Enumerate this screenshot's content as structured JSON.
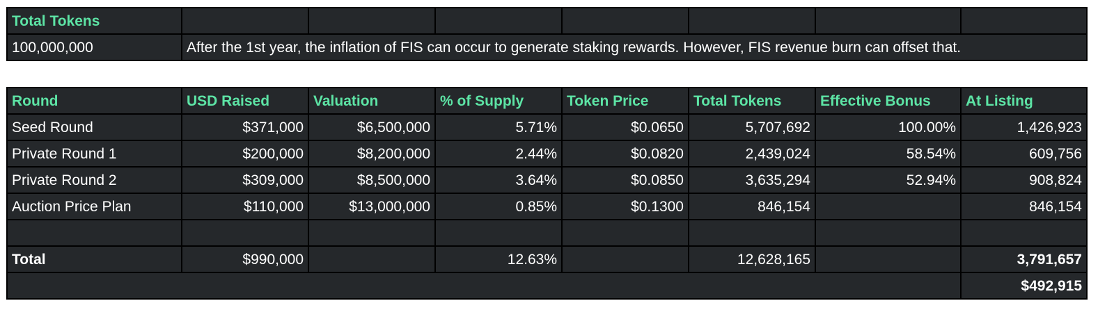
{
  "summary": {
    "header": "Total Tokens",
    "total_tokens": "100,000,000",
    "note": "After the 1st year, the inflation of FIS can occur to generate staking rewards. However, FIS revenue burn can offset that."
  },
  "table": {
    "columns": [
      "Round",
      "USD Raised",
      "Valuation",
      "% of Supply",
      "Token Price",
      "Total Tokens",
      "Effective Bonus",
      "At Listing"
    ],
    "rows": [
      [
        "Seed Round",
        "$371,000",
        "$6,500,000",
        "5.71%",
        "$0.0650",
        "5,707,692",
        "100.00%",
        "1,426,923"
      ],
      [
        "Private Round 1",
        "$200,000",
        "$8,200,000",
        "2.44%",
        "$0.0820",
        "2,439,024",
        "58.54%",
        "609,756"
      ],
      [
        "Private Round 2",
        "$309,000",
        "$8,500,000",
        "3.64%",
        "$0.0850",
        "3,635,294",
        "52.94%",
        "908,824"
      ],
      [
        "Auction Price Plan",
        "$110,000",
        "$13,000,000",
        "0.85%",
        "$0.1300",
        "846,154",
        "",
        "846,154"
      ]
    ],
    "total": {
      "label": "Total",
      "usd_raised": "$990,000",
      "pct_supply": "12.63%",
      "total_tokens": "12,628,165",
      "at_listing": "3,791,657",
      "at_listing_usd": "$492,915"
    }
  },
  "colors": {
    "header_text": "#5de4a5",
    "cell_background": "#25282b",
    "grid": "#000000"
  }
}
